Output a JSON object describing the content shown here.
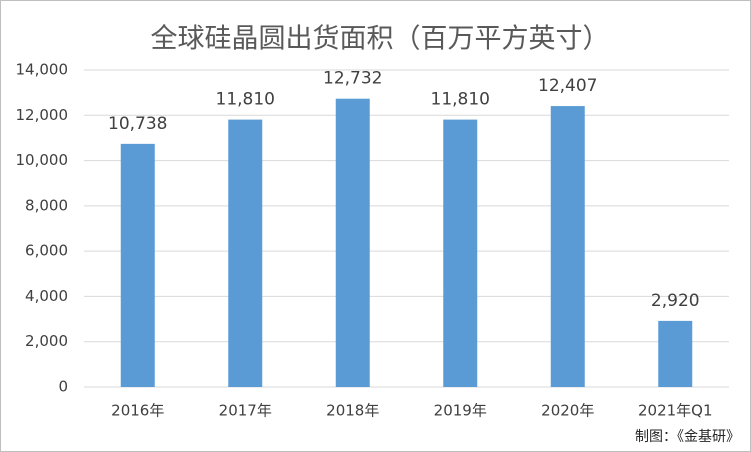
{
  "chart_data": {
    "type": "bar",
    "title": "全球硅晶圆出货面积（百万平方英寸）",
    "categories": [
      "2016年",
      "2017年",
      "2018年",
      "2019年",
      "2020年",
      "2021年Q1"
    ],
    "values": [
      10738,
      11810,
      12732,
      11810,
      12407,
      2920
    ],
    "value_labels": [
      "10,738",
      "11,810",
      "12,732",
      "11,810",
      "12,407",
      "2,920"
    ],
    "color": "#5b9bd5",
    "ylim": [
      0,
      14000
    ],
    "yticks": [
      {
        "value": 0,
        "label": "0"
      },
      {
        "value": 2000,
        "label": "2,000"
      },
      {
        "value": 4000,
        "label": "4,000"
      },
      {
        "value": 6000,
        "label": "6,000"
      },
      {
        "value": 8000,
        "label": "8,000"
      },
      {
        "value": 10000,
        "label": "10,000"
      },
      {
        "value": 12000,
        "label": "12,000"
      },
      {
        "value": 14000,
        "label": "14,000"
      }
    ],
    "grid": true,
    "annotation": "制图：《金基研》"
  }
}
